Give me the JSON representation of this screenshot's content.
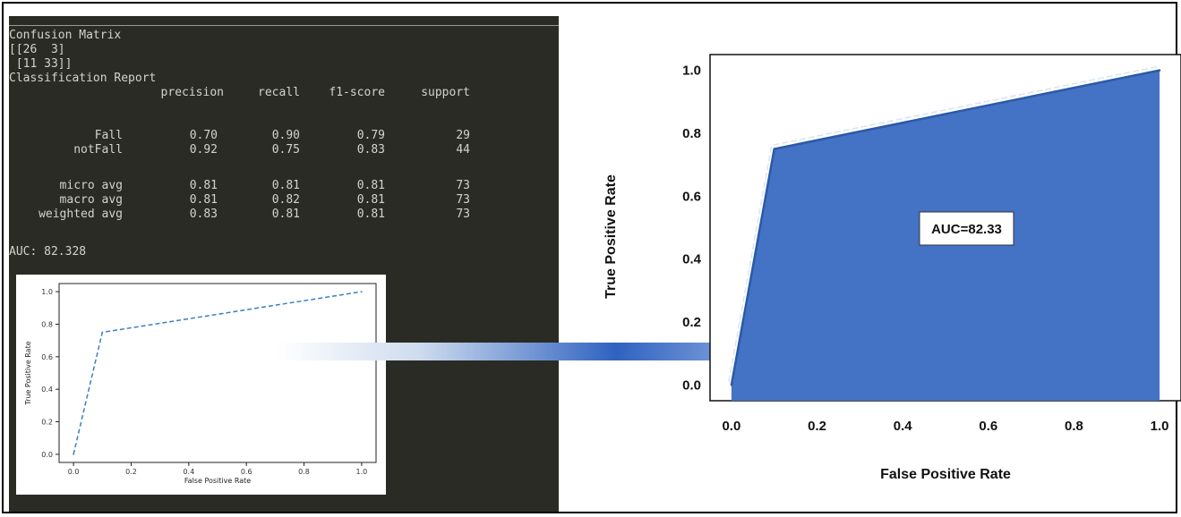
{
  "console": {
    "confusion_title": "Confusion Matrix",
    "matrix_row1": "[[26  3]",
    "matrix_row2": " [11 33]]",
    "report_title": "Classification Report",
    "columns": [
      "precision",
      "recall",
      "f1-score",
      "support"
    ],
    "rows": [
      {
        "label": "Fall",
        "values": [
          "0.70",
          "0.90",
          "0.79",
          "29"
        ]
      },
      {
        "label": "notFall",
        "values": [
          "0.92",
          "0.75",
          "0.83",
          "44"
        ]
      },
      {
        "label": "micro avg",
        "values": [
          "0.81",
          "0.81",
          "0.81",
          "73"
        ]
      },
      {
        "label": "macro avg",
        "values": [
          "0.81",
          "0.82",
          "0.81",
          "73"
        ]
      },
      {
        "label": "weighted avg",
        "values": [
          "0.83",
          "0.81",
          "0.81",
          "73"
        ]
      }
    ],
    "auc_line": "AUC: 82.328"
  },
  "chart_data": [
    {
      "type": "line",
      "x": [
        0.0,
        0.1,
        1.0
      ],
      "y": [
        0.0,
        0.75,
        1.0
      ],
      "xlabel": "False Positive Rate",
      "ylabel": "True Positive Rate",
      "xticks": [
        "0.0",
        "0.2",
        "0.4",
        "0.6",
        "0.8",
        "1.0"
      ],
      "yticks": [
        "0.0",
        "0.2",
        "0.4",
        "0.6",
        "0.8",
        "1.0"
      ],
      "xlim": [
        -0.05,
        1.05
      ],
      "ylim": [
        -0.05,
        1.05
      ],
      "line_style": "dashed",
      "color": "#3b7fc4"
    },
    {
      "type": "area",
      "x": [
        0.0,
        0.1,
        1.0
      ],
      "y": [
        0.0,
        0.75,
        1.0
      ],
      "xlabel": "False Positive Rate",
      "ylabel": "True Positive Rate",
      "xticks": [
        "0.0",
        "0.2",
        "0.4",
        "0.6",
        "0.8",
        "1.0"
      ],
      "yticks": [
        "0.0",
        "0.2",
        "0.4",
        "0.6",
        "0.8",
        "1.0"
      ],
      "xlim": [
        -0.05,
        1.05
      ],
      "ylim": [
        -0.05,
        1.05
      ],
      "annotation": "AUC=82.33",
      "fill_color": "#4472c4"
    }
  ]
}
